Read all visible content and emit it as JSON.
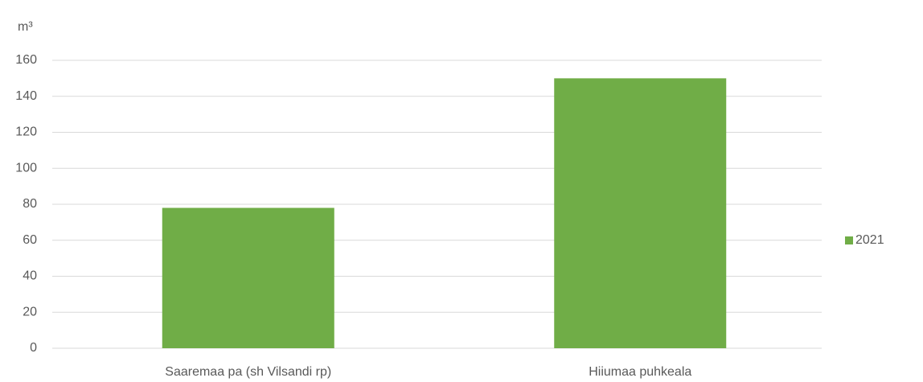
{
  "chart_data": {
    "type": "bar",
    "y_axis_label": "m³",
    "categories": [
      "Saaremaa pa (sh Vilsandi rp)",
      "Hiiumaa puhkeala"
    ],
    "series": [
      {
        "name": "2021",
        "color": "#70ad47",
        "values": [
          78,
          150
        ]
      }
    ],
    "ylim": [
      0,
      160
    ],
    "yticks": [
      0,
      20,
      40,
      60,
      80,
      100,
      120,
      140,
      160
    ],
    "grid": true,
    "legend": "right"
  }
}
